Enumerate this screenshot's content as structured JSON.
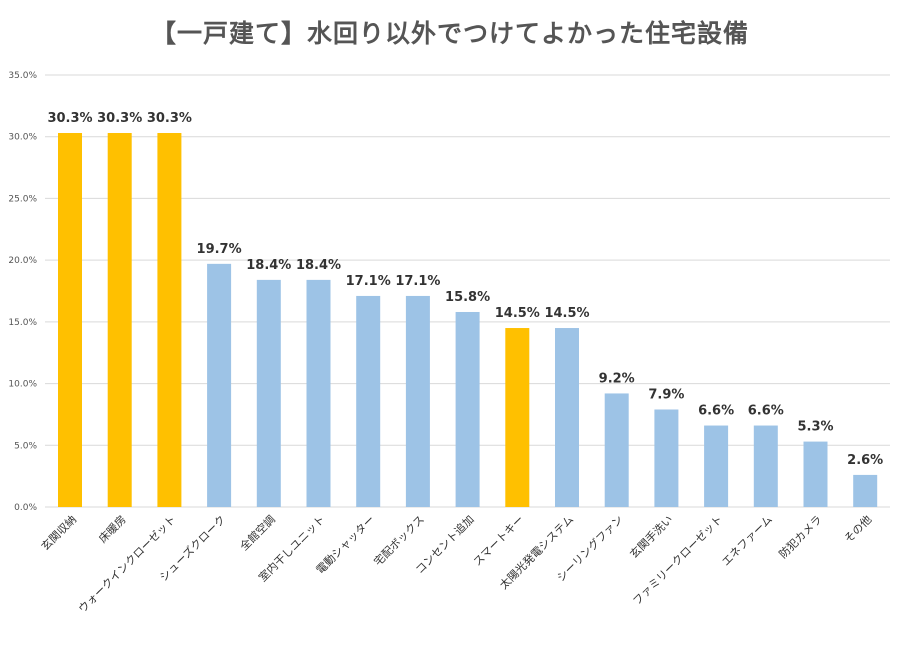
{
  "chart_data": {
    "type": "bar",
    "title": "【一戸建て】水回り以外でつけてよかった住宅設備",
    "xlabel": "",
    "ylabel": "",
    "ylim": [
      0,
      35
    ],
    "yticks": [
      "0.0%",
      "5.0%",
      "10.0%",
      "15.0%",
      "20.0%",
      "25.0%",
      "30.0%",
      "35.0%"
    ],
    "grid": true,
    "categories": [
      "玄関収納",
      "床暖房",
      "ウォークインクローゼット",
      "シューズクローク",
      "全館空調",
      "室内干しユニット",
      "電動シャッター",
      "宅配ボックス",
      "コンセント追加",
      "スマートキー",
      "太陽光発電システム",
      "シーリングファン",
      "玄関手洗い",
      "ファミリークローゼット",
      "エネファーム",
      "防犯カメラ",
      "その他"
    ],
    "values": [
      30.3,
      30.3,
      30.3,
      19.7,
      18.4,
      18.4,
      17.1,
      17.1,
      15.8,
      14.5,
      14.5,
      9.2,
      7.9,
      6.6,
      6.6,
      5.3,
      2.6
    ],
    "value_labels": [
      "30.3%",
      "30.3%",
      "30.3%",
      "19.7%",
      "18.4%",
      "18.4%",
      "17.1%",
      "17.1%",
      "15.8%",
      "14.5%",
      "14.5%",
      "9.2%",
      "7.9%",
      "6.6%",
      "6.6%",
      "5.3%",
      "2.6%"
    ],
    "highlight": [
      true,
      true,
      true,
      false,
      false,
      false,
      false,
      false,
      false,
      true,
      false,
      false,
      false,
      false,
      false,
      false,
      false
    ],
    "colors": {
      "highlight": "#FFC000",
      "default": "#9DC3E6"
    }
  }
}
